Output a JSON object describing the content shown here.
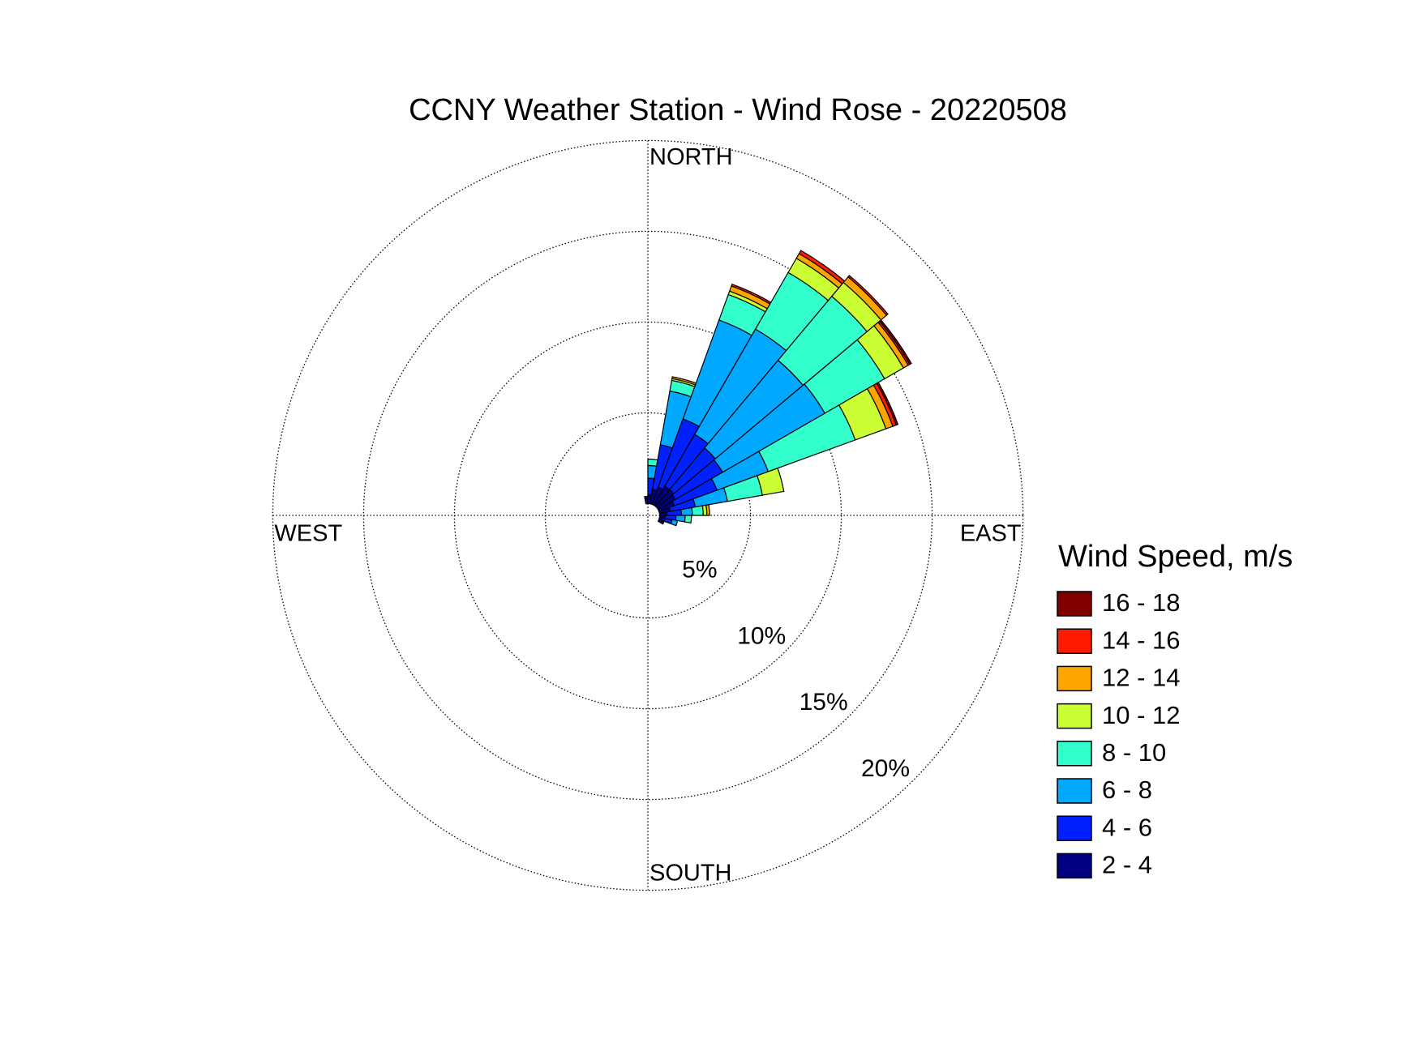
{
  "chart_data": {
    "type": "windrose",
    "title": "CCNY Weather Station - Wind Rose - 20220508",
    "direction_labels": [
      "NORTH",
      "EAST",
      "SOUTH",
      "WEST"
    ],
    "x": [
      355,
      5,
      15,
      25,
      35,
      45,
      55,
      65,
      75,
      85,
      95,
      105,
      115
    ],
    "sector_width": 10,
    "rlim": [
      0,
      20
    ],
    "rticks": [
      {
        "value": 5,
        "label": "5%"
      },
      {
        "value": 10,
        "label": "10%"
      },
      {
        "value": 15,
        "label": "15%"
      },
      {
        "value": 20,
        "label": "20%"
      }
    ],
    "grid": true,
    "legend_title": "Wind Speed, m/s",
    "series": [
      {
        "name": "2 - 4",
        "color": "#000080",
        "values": [
          0.3,
          0.5,
          0.8,
          1.0,
          1.2,
          1.2,
          1.1,
          0.9,
          0.6,
          0.4,
          0.3,
          0.3,
          0.2
        ]
      },
      {
        "name": "4 - 6",
        "color": "#0020ff",
        "values": [
          0.1,
          0.9,
          2.5,
          4.0,
          3.3,
          3.0,
          3.0,
          2.5,
          1.4,
          0.8,
          0.6,
          0.4,
          0.1
        ]
      },
      {
        "name": "6 - 8",
        "color": "#00a8ff",
        "values": [
          0,
          0.7,
          3.0,
          5.8,
          6.7,
          6.3,
          6.5,
          3.0,
          1.8,
          0.6,
          0.5,
          0.3,
          0
        ]
      },
      {
        "name": "8 - 10",
        "color": "#33ffcc",
        "values": [
          0,
          0.35,
          0.6,
          1.5,
          3.6,
          4.6,
          3.8,
          5.1,
          1.95,
          0.6,
          0.35,
          0,
          0
        ]
      },
      {
        "name": "10 - 12",
        "color": "#ccff33",
        "values": [
          0,
          0,
          0.1,
          0.2,
          0.9,
          1.0,
          1.2,
          1.8,
          1.2,
          0.2,
          0,
          0,
          0
        ]
      },
      {
        "name": "12 - 14",
        "color": "#ffa500",
        "values": [
          0,
          0,
          0.1,
          0.3,
          0.3,
          0.4,
          0.3,
          0.4,
          0,
          0.15,
          0,
          0,
          0
        ]
      },
      {
        "name": "14 - 16",
        "color": "#ff1a00",
        "values": [
          0,
          0,
          0,
          0.1,
          0.2,
          0.1,
          0.1,
          0.2,
          0,
          0,
          0,
          0,
          0
        ]
      },
      {
        "name": "16 - 18",
        "color": "#800000",
        "values": [
          0,
          0,
          0,
          0,
          0,
          0,
          0.1,
          0.1,
          0,
          0,
          0,
          0,
          0
        ]
      }
    ]
  }
}
